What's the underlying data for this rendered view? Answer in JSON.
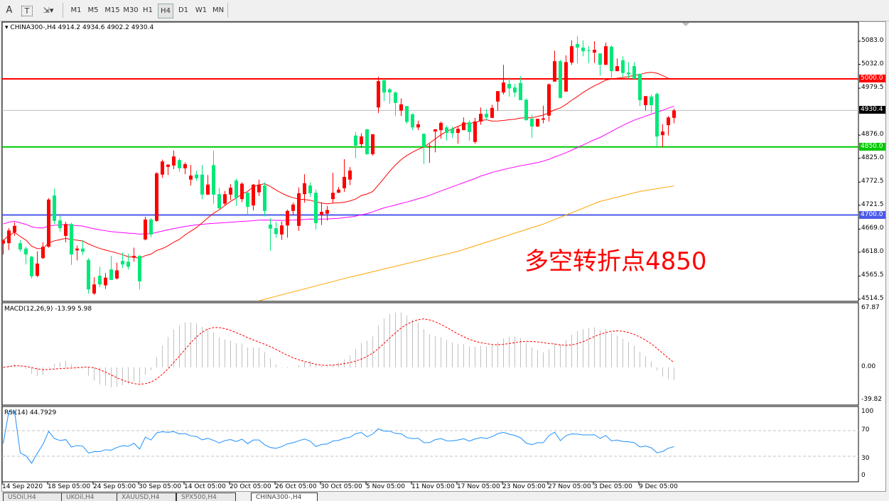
{
  "toolbar": {
    "tools": [
      {
        "name": "text-tool",
        "glyph": "A"
      },
      {
        "name": "text-label-tool",
        "glyph": "T"
      },
      {
        "name": "arrows-tool",
        "glyph": "⇲▾"
      }
    ],
    "timeframes": [
      "M1",
      "M5",
      "M15",
      "M30",
      "H1",
      "H4",
      "D1",
      "W1",
      "MN"
    ],
    "active_timeframe": "H4"
  },
  "chart": {
    "header": "CHINA300-,H4  4914.2 4934.6 4902.2 4930.4",
    "annotation": "多空转折点4850",
    "colors": {
      "bull": "#ff0000",
      "bear": "#00e87a",
      "ma_fast": "#ff0000",
      "ma_mid": "#ff00ff",
      "ma_slow": "#ffa500",
      "line_5000": "#ff0000",
      "line_4850": "#00c800",
      "line_4700": "#4a5ae8",
      "current": "#c0c0c0"
    },
    "price_axis": [
      "5083.0",
      "5032.0",
      "4979.5",
      "4876.0",
      "4825.0",
      "4772.5",
      "4721.5",
      "4669.0",
      "4618.0",
      "4565.5",
      "4514.5"
    ],
    "levels": [
      {
        "label": "5000.0",
        "price": 5000,
        "color": "#ff0000"
      },
      {
        "label": "4930.4",
        "price": 4930.4,
        "color": "#000000"
      },
      {
        "label": "4850.0",
        "price": 4850,
        "color": "#00c800"
      },
      {
        "label": "4700.0",
        "price": 4700,
        "color": "#4a5ae8"
      }
    ],
    "date_labels": [
      "14 Sep 2020",
      "18 Sep 05:00",
      "24 Sep 05:00",
      "30 Sep 05:00",
      "14 Oct 05:00",
      "20 Oct 05:00",
      "26 Oct 05:00",
      "30 Oct 05:00",
      "5 Nov 05:00",
      "11 Nov 05:00",
      "17 Nov 05:00",
      "23 Nov 05:00",
      "27 Nov 05:00",
      "3 Dec 05:00",
      "9 Dec 05:00"
    ]
  },
  "macd": {
    "label": "MACD(12,26,9) -13.99 5.98",
    "axis": [
      "67.87",
      "0.00",
      "-39.82"
    ]
  },
  "rsi": {
    "label": "RSI(14) 44.7929",
    "axis": [
      "100",
      "70",
      "30",
      "0"
    ]
  },
  "tabs": [
    "USOil,H4",
    "UKOil,H4",
    "XAUUSD,H4",
    "SPX500,H4",
    "CHINA300-,H4"
  ],
  "active_tab": "CHINA300-,H4",
  "chart_data": {
    "type": "candlestick",
    "symbol": "CHINA300-",
    "timeframe": "H4",
    "ylim": [
      4514.5,
      5083.0
    ],
    "ohlc": [
      [
        4637,
        4646,
        4613,
        4644
      ],
      [
        4638,
        4671,
        4623,
        4666
      ],
      [
        4662,
        4684,
        4654,
        4676
      ],
      [
        4638,
        4645,
        4619,
        4624
      ],
      [
        4626,
        4630,
        4591,
        4613
      ],
      [
        4608,
        4610,
        4560,
        4565
      ],
      [
        4566,
        4620,
        4563,
        4593
      ],
      [
        4605,
        4640,
        4603,
        4630
      ],
      [
        4630,
        4737,
        4628,
        4734
      ],
      [
        4743,
        4758,
        4680,
        4687
      ],
      [
        4688,
        4698,
        4663,
        4671
      ],
      [
        4654,
        4685,
        4640,
        4680
      ],
      [
        4680,
        4683,
        4590,
        4613
      ],
      [
        4622,
        4633,
        4600,
        4626
      ],
      [
        4626,
        4645,
        4612,
        4619
      ],
      [
        4601,
        4605,
        4527,
        4536
      ],
      [
        4527,
        4563,
        4524,
        4547
      ],
      [
        4566,
        4586,
        4541,
        4547
      ],
      [
        4545,
        4572,
        4537,
        4562
      ],
      [
        4580,
        4610,
        4557,
        4557
      ],
      [
        4560,
        4595,
        4558,
        4578
      ],
      [
        4599,
        4618,
        4583,
        4591
      ],
      [
        4597,
        4615,
        4580,
        4586
      ],
      [
        4606,
        4628,
        4597,
        4610
      ],
      [
        4610,
        4612,
        4536,
        4554
      ],
      [
        4646,
        4696,
        4644,
        4690
      ],
      [
        4690,
        4693,
        4651,
        4657
      ],
      [
        4687,
        4794,
        4685,
        4792
      ],
      [
        4789,
        4822,
        4782,
        4818
      ],
      [
        4806,
        4812,
        4788,
        4811
      ],
      [
        4809,
        4842,
        4801,
        4829
      ],
      [
        4821,
        4825,
        4795,
        4803
      ],
      [
        4803,
        4816,
        4790,
        4812
      ],
      [
        4778,
        4810,
        4765,
        4787
      ],
      [
        4789,
        4798,
        4776,
        4781
      ],
      [
        4789,
        4810,
        4735,
        4745
      ],
      [
        4745,
        4788,
        4744,
        4767
      ],
      [
        4810,
        4842,
        4725,
        4745
      ],
      [
        4746,
        4760,
        4710,
        4715
      ],
      [
        4725,
        4753,
        4722,
        4746
      ],
      [
        4745,
        4768,
        4733,
        4760
      ],
      [
        4776,
        4780,
        4720,
        4738
      ],
      [
        4735,
        4772,
        4728,
        4769
      ],
      [
        4749,
        4752,
        4700,
        4718
      ],
      [
        4721,
        4768,
        4710,
        4767
      ],
      [
        4750,
        4778,
        4742,
        4767
      ],
      [
        4765,
        4772,
        4697,
        4709
      ],
      [
        4679,
        4693,
        4621,
        4670
      ],
      [
        4671,
        4685,
        4650,
        4658
      ],
      [
        4657,
        4686,
        4645,
        4677
      ],
      [
        4677,
        4712,
        4650,
        4709
      ],
      [
        4709,
        4727,
        4700,
        4723
      ],
      [
        4676,
        4761,
        4665,
        4748
      ],
      [
        4746,
        4790,
        4727,
        4770
      ],
      [
        4765,
        4772,
        4740,
        4748
      ],
      [
        4749,
        4756,
        4668,
        4682
      ],
      [
        4700,
        4728,
        4678,
        4707
      ],
      [
        4703,
        4720,
        4688,
        4711
      ],
      [
        4735,
        4793,
        4727,
        4749
      ],
      [
        4749,
        4762,
        4749,
        4756
      ],
      [
        4759,
        4823,
        4751,
        4784
      ],
      [
        4778,
        4806,
        4766,
        4798
      ],
      [
        4875,
        4883,
        4825,
        4853
      ],
      [
        4856,
        4880,
        4848,
        4873
      ],
      [
        4889,
        4889,
        4833,
        4834
      ],
      [
        4834,
        4878,
        4831,
        4878
      ],
      [
        4937,
        5005,
        4925,
        4995
      ],
      [
        4997,
        4999,
        4951,
        4970
      ],
      [
        4977,
        4980,
        4945,
        4970
      ],
      [
        4970,
        4972,
        4918,
        4947
      ],
      [
        4930,
        4957,
        4918,
        4944
      ],
      [
        4940,
        4940,
        4901,
        4905
      ],
      [
        4922,
        4924,
        4887,
        4893
      ],
      [
        4893,
        4908,
        4887,
        4900
      ],
      [
        4879,
        4879,
        4812,
        4850
      ],
      [
        4850,
        4857,
        4815,
        4852
      ],
      [
        4884,
        4889,
        4838,
        4889
      ],
      [
        4887,
        4906,
        4868,
        4903
      ],
      [
        4893,
        4897,
        4864,
        4881
      ],
      [
        4890,
        4895,
        4870,
        4880
      ],
      [
        4881,
        4895,
        4857,
        4890
      ],
      [
        4887,
        4915,
        4887,
        4904
      ],
      [
        4904,
        4909,
        4864,
        4883
      ],
      [
        4861,
        4914,
        4857,
        4906
      ],
      [
        4906,
        4937,
        4899,
        4923
      ],
      [
        4923,
        4933,
        4909,
        4915
      ],
      [
        4914,
        4943,
        4914,
        4936
      ],
      [
        4950,
        4973,
        4930,
        4973
      ],
      [
        4970,
        5031,
        4966,
        4992
      ],
      [
        4989,
        5003,
        4961,
        4979
      ],
      [
        4981,
        4989,
        4960,
        4970
      ],
      [
        4991,
        5006,
        4953,
        4953
      ],
      [
        4954,
        4957,
        4908,
        4909
      ],
      [
        4912,
        4921,
        4870,
        4895
      ],
      [
        4895,
        4912,
        4894,
        4912
      ],
      [
        4910,
        4941,
        4902,
        4913
      ],
      [
        4919,
        4990,
        4906,
        4988
      ],
      [
        4994,
        5062,
        4994,
        5039
      ],
      [
        5039,
        5042,
        4957,
        4958
      ],
      [
        4972,
        5052,
        4972,
        5037
      ],
      [
        5036,
        5085,
        5031,
        5072
      ],
      [
        5077,
        5094,
        5034,
        5069
      ],
      [
        5069,
        5085,
        5050,
        5061
      ],
      [
        5063,
        5072,
        5035,
        5062
      ],
      [
        5058,
        5083,
        5035,
        5064
      ],
      [
        5056,
        5056,
        5007,
        5031
      ],
      [
        5031,
        5080,
        5031,
        5072
      ],
      [
        5071,
        5074,
        5003,
        5017
      ],
      [
        5017,
        5045,
        5017,
        5028
      ],
      [
        5041,
        5050,
        5003,
        5013
      ],
      [
        5014,
        5037,
        5001,
        5010
      ],
      [
        5028,
        5037,
        5000,
        5000
      ],
      [
        5011,
        5012,
        4940,
        4953
      ],
      [
        4942,
        4962,
        4930,
        4962
      ],
      [
        4961,
        4965,
        4925,
        4942
      ],
      [
        4967,
        4970,
        4852,
        4873
      ],
      [
        4876,
        4900,
        4850,
        4884
      ],
      [
        4898,
        4918,
        4875,
        4915
      ],
      [
        4914.2,
        4934.6,
        4902.2,
        4930.4
      ]
    ],
    "ma_fast_period": 20,
    "ma_mid_period": 60,
    "ma_slow_points": [
      [
        45,
        4511
      ],
      [
        60,
        4560
      ],
      [
        80,
        4620
      ],
      [
        95,
        4680
      ],
      [
        105,
        4730
      ],
      [
        112,
        4752
      ],
      [
        118,
        4764
      ]
    ],
    "macd": {
      "fast": 12,
      "slow": 26,
      "signal": 9,
      "ylim": [
        -39.82,
        67.87
      ]
    },
    "rsi": {
      "period": 14,
      "levels": [
        70,
        30
      ],
      "ylim": [
        0,
        100
      ]
    }
  }
}
